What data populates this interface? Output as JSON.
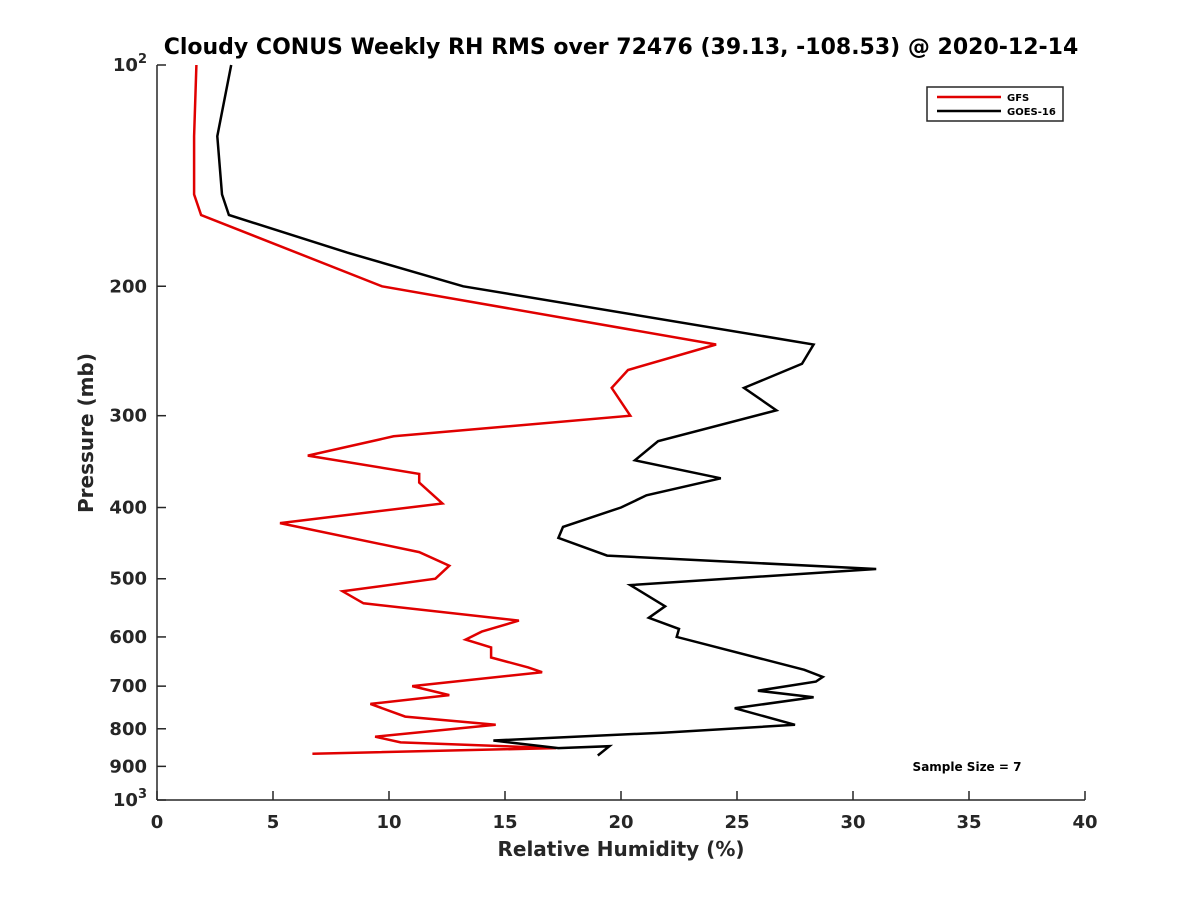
{
  "chart_data": {
    "type": "line",
    "title": "Cloudy CONUS Weekly RH RMS over 72476 (39.13, -108.53) @ 2020-12-14",
    "xlabel": "Relative Humidity (%)",
    "ylabel": "Pressure (mb)",
    "xlim": [
      0,
      40
    ],
    "ylim": [
      100,
      1000
    ],
    "y_scale": "log",
    "y_reversed": true,
    "grid": false,
    "legend_position": "top-right",
    "x_ticks": [
      0,
      5,
      10,
      15,
      20,
      25,
      30,
      35,
      40
    ],
    "x_tick_labels": [
      "0",
      "5",
      "10",
      "15",
      "20",
      "25",
      "30",
      "35",
      "40"
    ],
    "y_ticks": [
      100,
      200,
      300,
      400,
      500,
      600,
      700,
      800,
      900,
      1000
    ],
    "y_tick_labels": [
      {
        "base": "10",
        "exp": "2"
      },
      {
        "base": "200",
        "exp": ""
      },
      {
        "base": "300",
        "exp": ""
      },
      {
        "base": "400",
        "exp": ""
      },
      {
        "base": "500",
        "exp": ""
      },
      {
        "base": "600",
        "exp": ""
      },
      {
        "base": "700",
        "exp": ""
      },
      {
        "base": "800",
        "exp": ""
      },
      {
        "base": "900",
        "exp": ""
      },
      {
        "base": "10",
        "exp": "3"
      }
    ],
    "annotation": "Sample Size = 7",
    "series": [
      {
        "name": "GFS",
        "color": "#e00000",
        "points": [
          [
            1.7,
            100
          ],
          [
            1.6,
            125
          ],
          [
            1.6,
            150
          ],
          [
            1.9,
            160
          ],
          [
            9.7,
            200
          ],
          [
            24.1,
            240
          ],
          [
            20.3,
            260
          ],
          [
            19.6,
            275
          ],
          [
            20.4,
            300
          ],
          [
            10.2,
            320
          ],
          [
            6.5,
            340
          ],
          [
            11.3,
            360
          ],
          [
            11.3,
            370
          ],
          [
            12.3,
            395
          ],
          [
            5.3,
            420
          ],
          [
            11.3,
            460
          ],
          [
            12.6,
            480
          ],
          [
            12.0,
            500
          ],
          [
            8.0,
            520
          ],
          [
            8.9,
            540
          ],
          [
            15.6,
            570
          ],
          [
            14.0,
            590
          ],
          [
            13.3,
            605
          ],
          [
            14.4,
            620
          ],
          [
            14.4,
            640
          ],
          [
            16.0,
            660
          ],
          [
            16.6,
            670
          ],
          [
            11.0,
            700
          ],
          [
            12.6,
            720
          ],
          [
            9.2,
            740
          ],
          [
            10.7,
            770
          ],
          [
            14.6,
            790
          ],
          [
            9.4,
            820
          ],
          [
            10.5,
            835
          ],
          [
            17.2,
            850
          ],
          [
            6.7,
            865
          ]
        ]
      },
      {
        "name": "GOES-16",
        "color": "#000000",
        "points": [
          [
            3.2,
            100
          ],
          [
            2.6,
            125
          ],
          [
            2.8,
            150
          ],
          [
            3.1,
            160
          ],
          [
            8.2,
            180
          ],
          [
            13.2,
            200
          ],
          [
            28.3,
            240
          ],
          [
            27.8,
            255
          ],
          [
            25.3,
            275
          ],
          [
            26.7,
            295
          ],
          [
            21.6,
            325
          ],
          [
            20.6,
            345
          ],
          [
            24.3,
            365
          ],
          [
            21.1,
            385
          ],
          [
            20.0,
            400
          ],
          [
            17.5,
            425
          ],
          [
            17.3,
            440
          ],
          [
            19.4,
            465
          ],
          [
            31.0,
            485
          ],
          [
            20.4,
            510
          ],
          [
            21.9,
            545
          ],
          [
            21.2,
            565
          ],
          [
            22.5,
            585
          ],
          [
            22.4,
            600
          ],
          [
            27.9,
            665
          ],
          [
            28.7,
            680
          ],
          [
            28.4,
            690
          ],
          [
            25.9,
            710
          ],
          [
            28.3,
            725
          ],
          [
            24.9,
            750
          ],
          [
            27.5,
            790
          ],
          [
            21.8,
            810
          ],
          [
            14.5,
            830
          ],
          [
            17.3,
            850
          ],
          [
            19.5,
            845
          ],
          [
            19.0,
            870
          ]
        ]
      }
    ]
  }
}
